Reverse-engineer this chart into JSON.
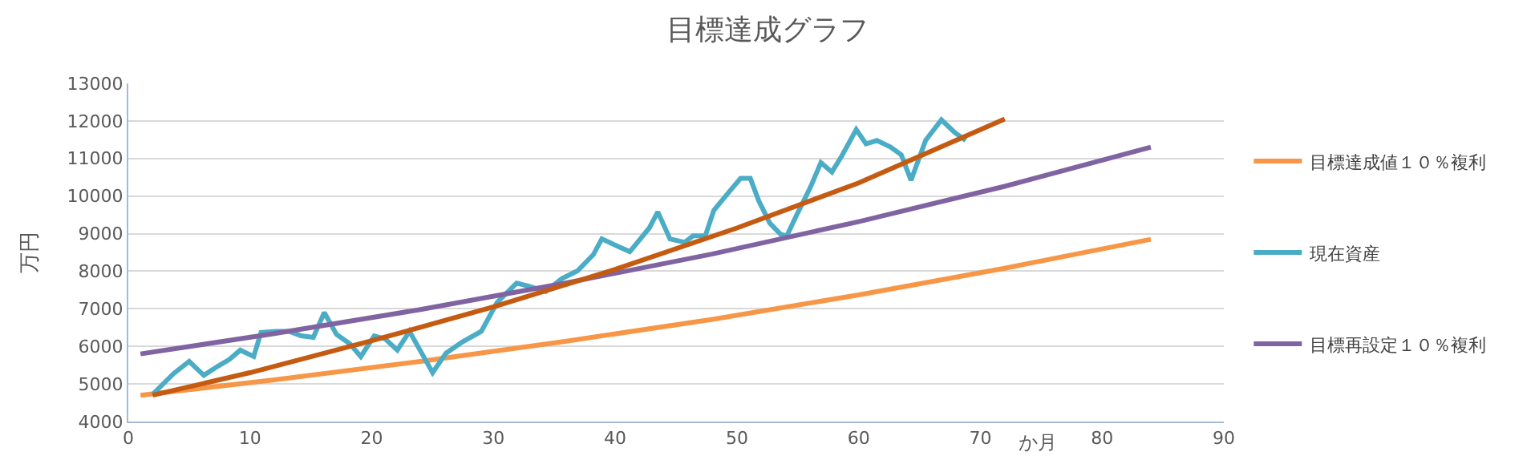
{
  "chart_data": {
    "type": "line",
    "title": "目標達成グラフ",
    "xlabel": "か月",
    "ylabel": "万円",
    "xlim": [
      0,
      90
    ],
    "xticks": [
      0,
      10,
      20,
      30,
      40,
      50,
      60,
      70,
      80,
      90
    ],
    "ylim": [
      4000,
      13000
    ],
    "yticks": [
      4000,
      5000,
      6000,
      7000,
      8000,
      9000,
      10000,
      11000,
      12000,
      13000
    ],
    "grid": "y",
    "legend": "right",
    "marker": "none",
    "line_style": "solid",
    "series": [
      {
        "name": "目標達成値１０％複利",
        "color": "#f79646",
        "x": [
          1,
          12,
          24,
          36,
          48,
          60,
          72,
          84
        ],
        "values": [
          4700,
          5110,
          5600,
          6140,
          6720,
          7370,
          8080,
          8850
        ]
      },
      {
        "name": "現在資産",
        "color": "#4bacc6",
        "x": [
          2.0,
          3.7,
          5.0,
          6.2,
          7.4,
          8.3,
          9.2,
          10.3,
          10.9,
          12.1,
          13.2,
          14.2,
          15.2,
          16.1,
          17.1,
          18.2,
          19.1,
          20.2,
          21.1,
          22.1,
          23.1,
          24.1,
          25.0,
          26.1,
          27.4,
          29.0,
          30.3,
          31.9,
          32.9,
          34.3,
          35.6,
          36.9,
          38.2,
          38.9,
          40.3,
          41.2,
          42.8,
          43.5,
          44.5,
          45.7,
          46.4,
          47.4,
          48.1,
          49.4,
          50.3,
          51.1,
          51.8,
          52.7,
          53.6,
          54.1,
          54.9,
          56.0,
          56.9,
          57.8,
          58.6,
          59.8,
          60.6,
          61.5,
          62.6,
          63.5,
          64.3,
          65.5,
          66.8,
          67.9,
          68.8
        ],
        "values": [
          4720,
          5270,
          5600,
          5230,
          5480,
          5650,
          5900,
          5730,
          6370,
          6400,
          6400,
          6280,
          6240,
          6900,
          6320,
          6070,
          5730,
          6280,
          6200,
          5900,
          6400,
          5820,
          5300,
          5820,
          6110,
          6400,
          7170,
          7680,
          7600,
          7460,
          7800,
          8010,
          8440,
          8860,
          8650,
          8520,
          9150,
          9580,
          8860,
          8770,
          8940,
          8940,
          9620,
          10130,
          10470,
          10470,
          9870,
          9280,
          8980,
          8940,
          9490,
          10210,
          10890,
          10640,
          11060,
          11770,
          11390,
          11480,
          11310,
          11100,
          10420,
          11480,
          12030,
          11690,
          11480
        ]
      },
      {
        "name": "目標再設定１０％複利",
        "color": "#8064a2",
        "x": [
          1,
          12,
          24,
          36,
          48,
          60,
          72,
          84
        ],
        "values": [
          5800,
          6340,
          6980,
          7690,
          8460,
          9320,
          10260,
          11300
        ]
      },
      {
        "color": "#c55a11",
        "x": [
          2,
          10,
          20,
          30,
          40,
          50,
          60,
          72
        ],
        "values": [
          4700,
          5300,
          6150,
          7050,
          8050,
          9150,
          10350,
          12050
        ]
      }
    ]
  }
}
